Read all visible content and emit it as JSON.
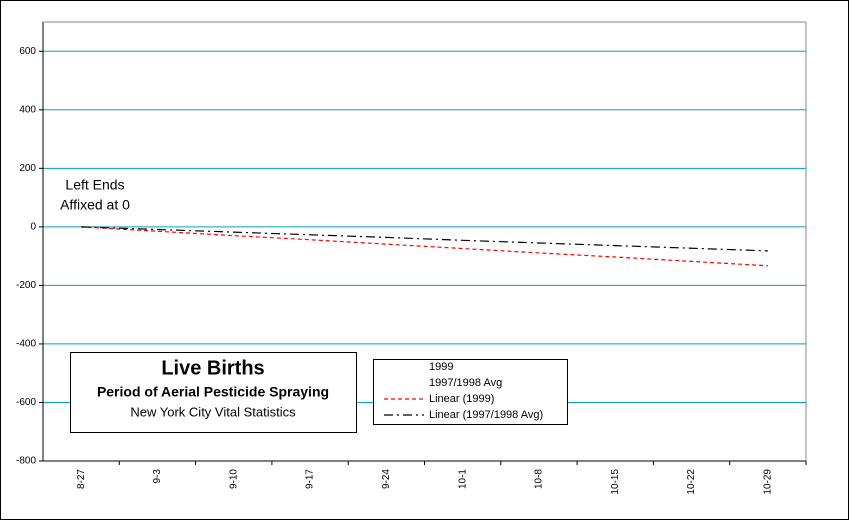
{
  "chart_data": {
    "type": "line",
    "annotation": [
      "Left Ends",
      "Affixed at 0"
    ],
    "title": "Live Births",
    "subtitle": "Period of Aerial Pesticide Spraying",
    "source": "New York City Vital Statistics",
    "categories": [
      "8-27",
      "9-3",
      "9-10",
      "9-17",
      "9-24",
      "10-1",
      "10-8",
      "10-15",
      "10-22",
      "10-29"
    ],
    "series": [
      {
        "name": "1999",
        "color": "#ffffff",
        "dash": "solid",
        "values": [
          null,
          null,
          null,
          null,
          null,
          null,
          null,
          null,
          null,
          null
        ]
      },
      {
        "name": "1997/1998 Avg",
        "color": "#ffffff",
        "dash": "solid",
        "values": [
          null,
          null,
          null,
          null,
          null,
          null,
          null,
          null,
          null,
          null
        ]
      },
      {
        "name": "Linear (1999)",
        "color": "#ff0000",
        "dash": "dashed",
        "values": [
          0,
          -15,
          -30,
          -44,
          -59,
          -74,
          -89,
          -103,
          -118,
          -133
        ]
      },
      {
        "name": "Linear (1997/1998 Avg)",
        "color": "#000000",
        "dash": "dashdot",
        "values": [
          0,
          -9,
          -18,
          -27,
          -36,
          -46,
          -55,
          -64,
          -73,
          -82
        ]
      }
    ],
    "ylim": [
      -800,
      700
    ],
    "yticks": [
      -800,
      -600,
      -400,
      -200,
      0,
      200,
      400,
      600
    ],
    "grid": true,
    "grid_color": "#00a0c8"
  }
}
